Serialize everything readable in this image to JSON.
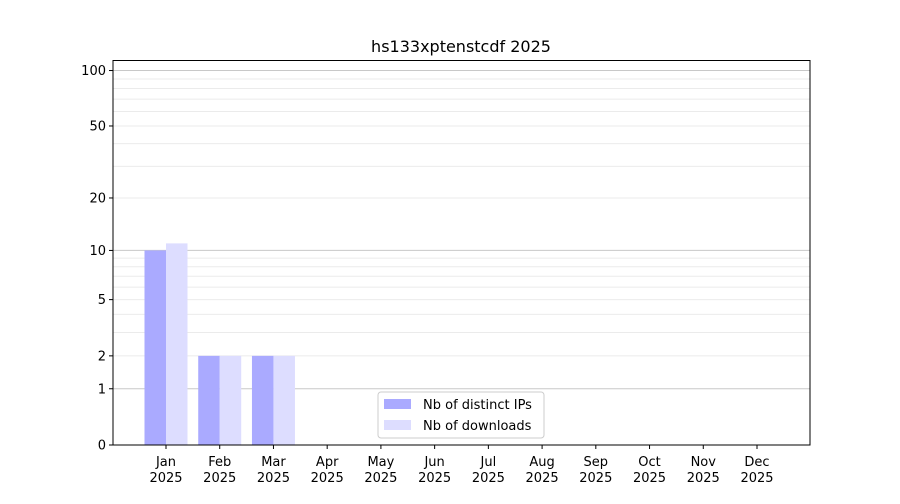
{
  "chart_data": {
    "type": "bar",
    "title": "hs133xptenstcdf 2025",
    "xlabel": "",
    "ylabel": "",
    "categories": [
      "Jan\n2025",
      "Feb\n2025",
      "Mar\n2025",
      "Apr\n2025",
      "May\n2025",
      "Jun\n2025",
      "Jul\n2025",
      "Aug\n2025",
      "Sep\n2025",
      "Oct\n2025",
      "Nov\n2025",
      "Dec\n2025"
    ],
    "series": [
      {
        "name": "Nb of distinct IPs",
        "color": "#aaaaff",
        "values": [
          10,
          2,
          2,
          0,
          0,
          0,
          0,
          0,
          0,
          0,
          0,
          0
        ]
      },
      {
        "name": "Nb of downloads",
        "color": "#ddddff",
        "values": [
          11,
          2,
          2,
          0,
          0,
          0,
          0,
          0,
          0,
          0,
          0,
          0
        ]
      }
    ],
    "yscale": "log(1+y)",
    "ylim": [
      0,
      114
    ],
    "yticks": [
      0,
      1,
      2,
      5,
      10,
      20,
      50,
      100
    ],
    "ytick_labels": [
      "0",
      "1",
      "2",
      "5",
      "10",
      "20",
      "50",
      "100"
    ],
    "grid": true,
    "legend_position": "lower-center"
  }
}
